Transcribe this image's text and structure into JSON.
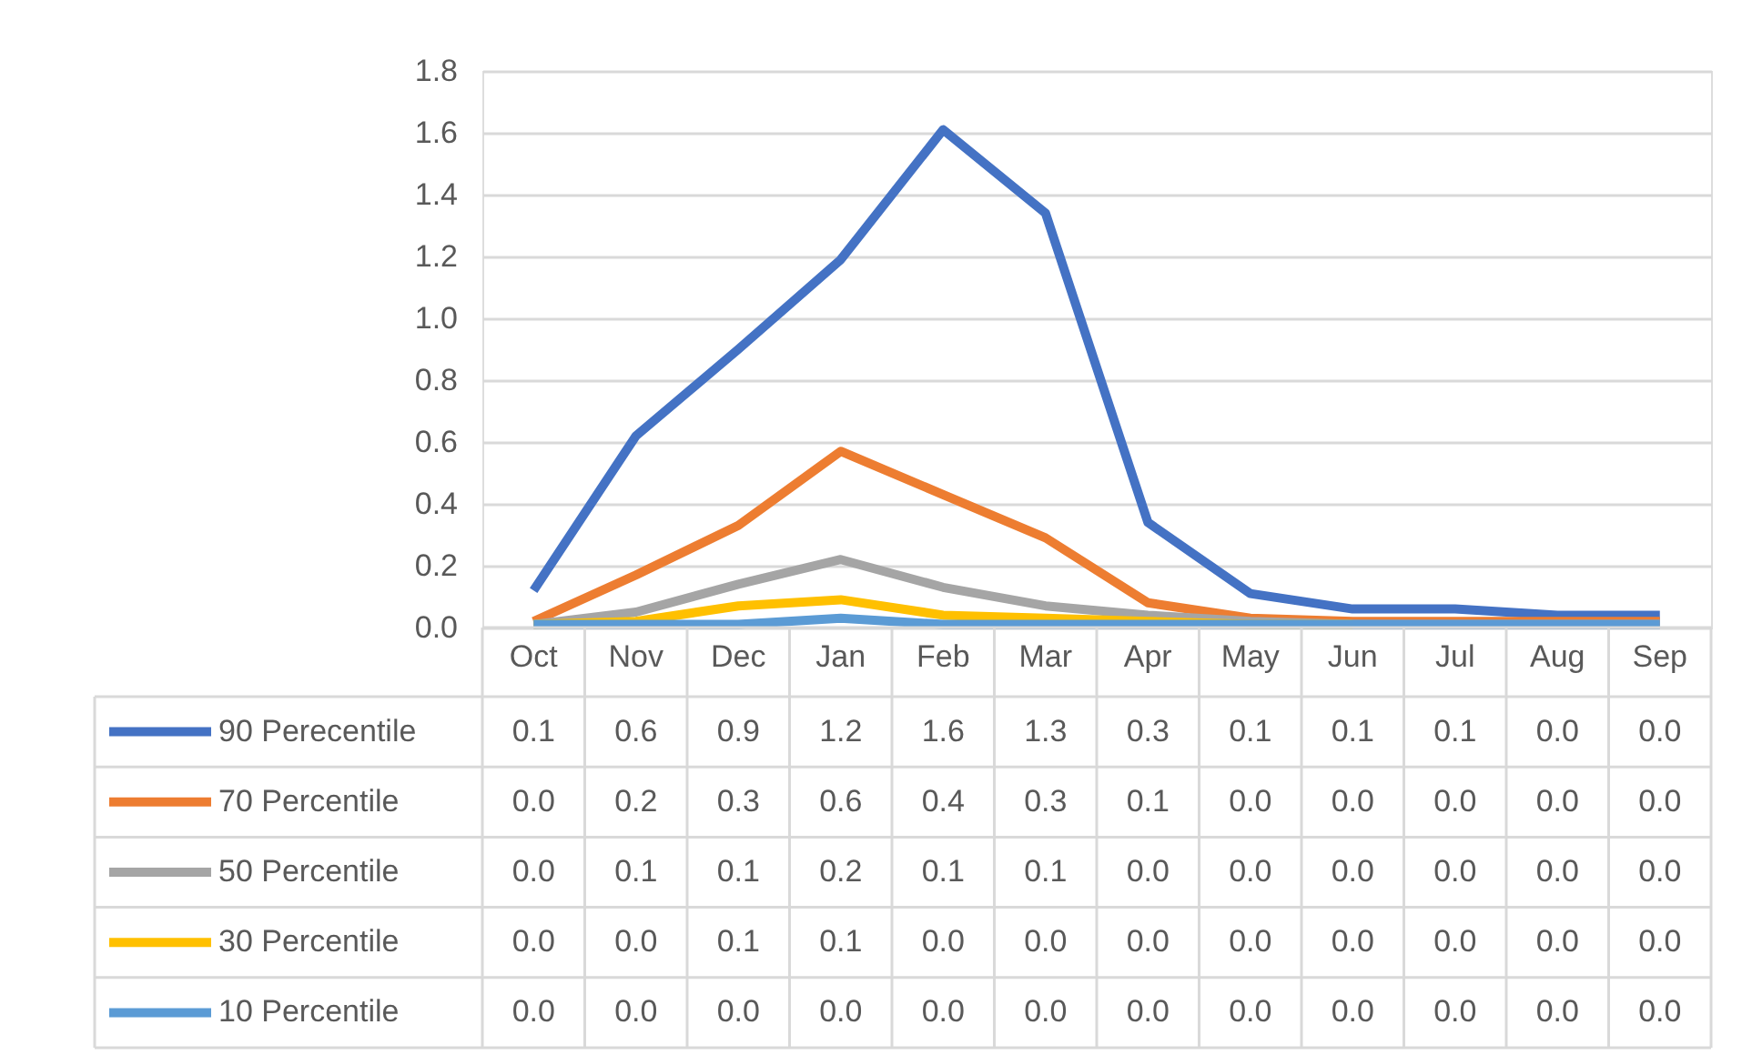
{
  "chart_data": {
    "type": "line",
    "categories": [
      "Oct",
      "Nov",
      "Dec",
      "Jan",
      "Feb",
      "Mar",
      "Apr",
      "May",
      "Jun",
      "Jul",
      "Aug",
      "Sep"
    ],
    "series": [
      {
        "name": "90 Perecentile",
        "color": "#4472c4",
        "values": [
          0.12,
          0.62,
          0.9,
          1.19,
          1.61,
          1.34,
          0.34,
          0.11,
          0.06,
          0.06,
          0.04,
          0.04
        ],
        "value_labels": [
          "0.1",
          "0.6",
          "0.9",
          "1.2",
          "1.6",
          "1.3",
          "0.3",
          "0.1",
          "0.1",
          "0.1",
          "0.0",
          "0.0"
        ]
      },
      {
        "name": "70 Percentile",
        "color": "#ed7d31",
        "values": [
          0.02,
          0.17,
          0.33,
          0.57,
          0.43,
          0.29,
          0.08,
          0.03,
          0.02,
          0.02,
          0.02,
          0.02
        ],
        "value_labels": [
          "0.0",
          "0.2",
          "0.3",
          "0.6",
          "0.4",
          "0.3",
          "0.1",
          "0.0",
          "0.0",
          "0.0",
          "0.0",
          "0.0"
        ]
      },
      {
        "name": "50 Percentile",
        "color": "#a5a5a5",
        "values": [
          0.01,
          0.05,
          0.14,
          0.22,
          0.13,
          0.07,
          0.04,
          0.02,
          0.01,
          0.01,
          0.01,
          0.01
        ],
        "value_labels": [
          "0.0",
          "0.1",
          "0.1",
          "0.2",
          "0.1",
          "0.1",
          "0.0",
          "0.0",
          "0.0",
          "0.0",
          "0.0",
          "0.0"
        ]
      },
      {
        "name": "30 Percentile",
        "color": "#ffc000",
        "values": [
          0.01,
          0.02,
          0.07,
          0.09,
          0.04,
          0.03,
          0.02,
          0.01,
          0.01,
          null,
          null,
          null
        ],
        "value_labels": [
          "0.0",
          "0.0",
          "0.1",
          "0.1",
          "0.0",
          "0.0",
          "0.0",
          "0.0",
          "0.0",
          "0.0",
          "0.0",
          "0.0"
        ]
      },
      {
        "name": "10 Percentile",
        "color": "#5b9bd5",
        "values": [
          0.01,
          0.01,
          0.01,
          0.03,
          0.01,
          0.01,
          0.01,
          0.01,
          0.01,
          0.01,
          0.01,
          0.01
        ],
        "value_labels": [
          "0.0",
          "0.0",
          "0.0",
          "0.0",
          "0.0",
          "0.0",
          "0.0",
          "0.0",
          "0.0",
          "0.0",
          "0.0",
          "0.0"
        ]
      }
    ],
    "ylim": [
      0,
      1.8
    ],
    "yticks": [
      {
        "value": 0,
        "label": "0.0"
      },
      0.2,
      0.4,
      0.6,
      0.8,
      {
        "value": 1,
        "label": "1.0"
      },
      1.2,
      1.4,
      1.6,
      1.8
    ],
    "grid": "y",
    "legend": "bottom",
    "marker": "none",
    "line_style": "solid"
  }
}
